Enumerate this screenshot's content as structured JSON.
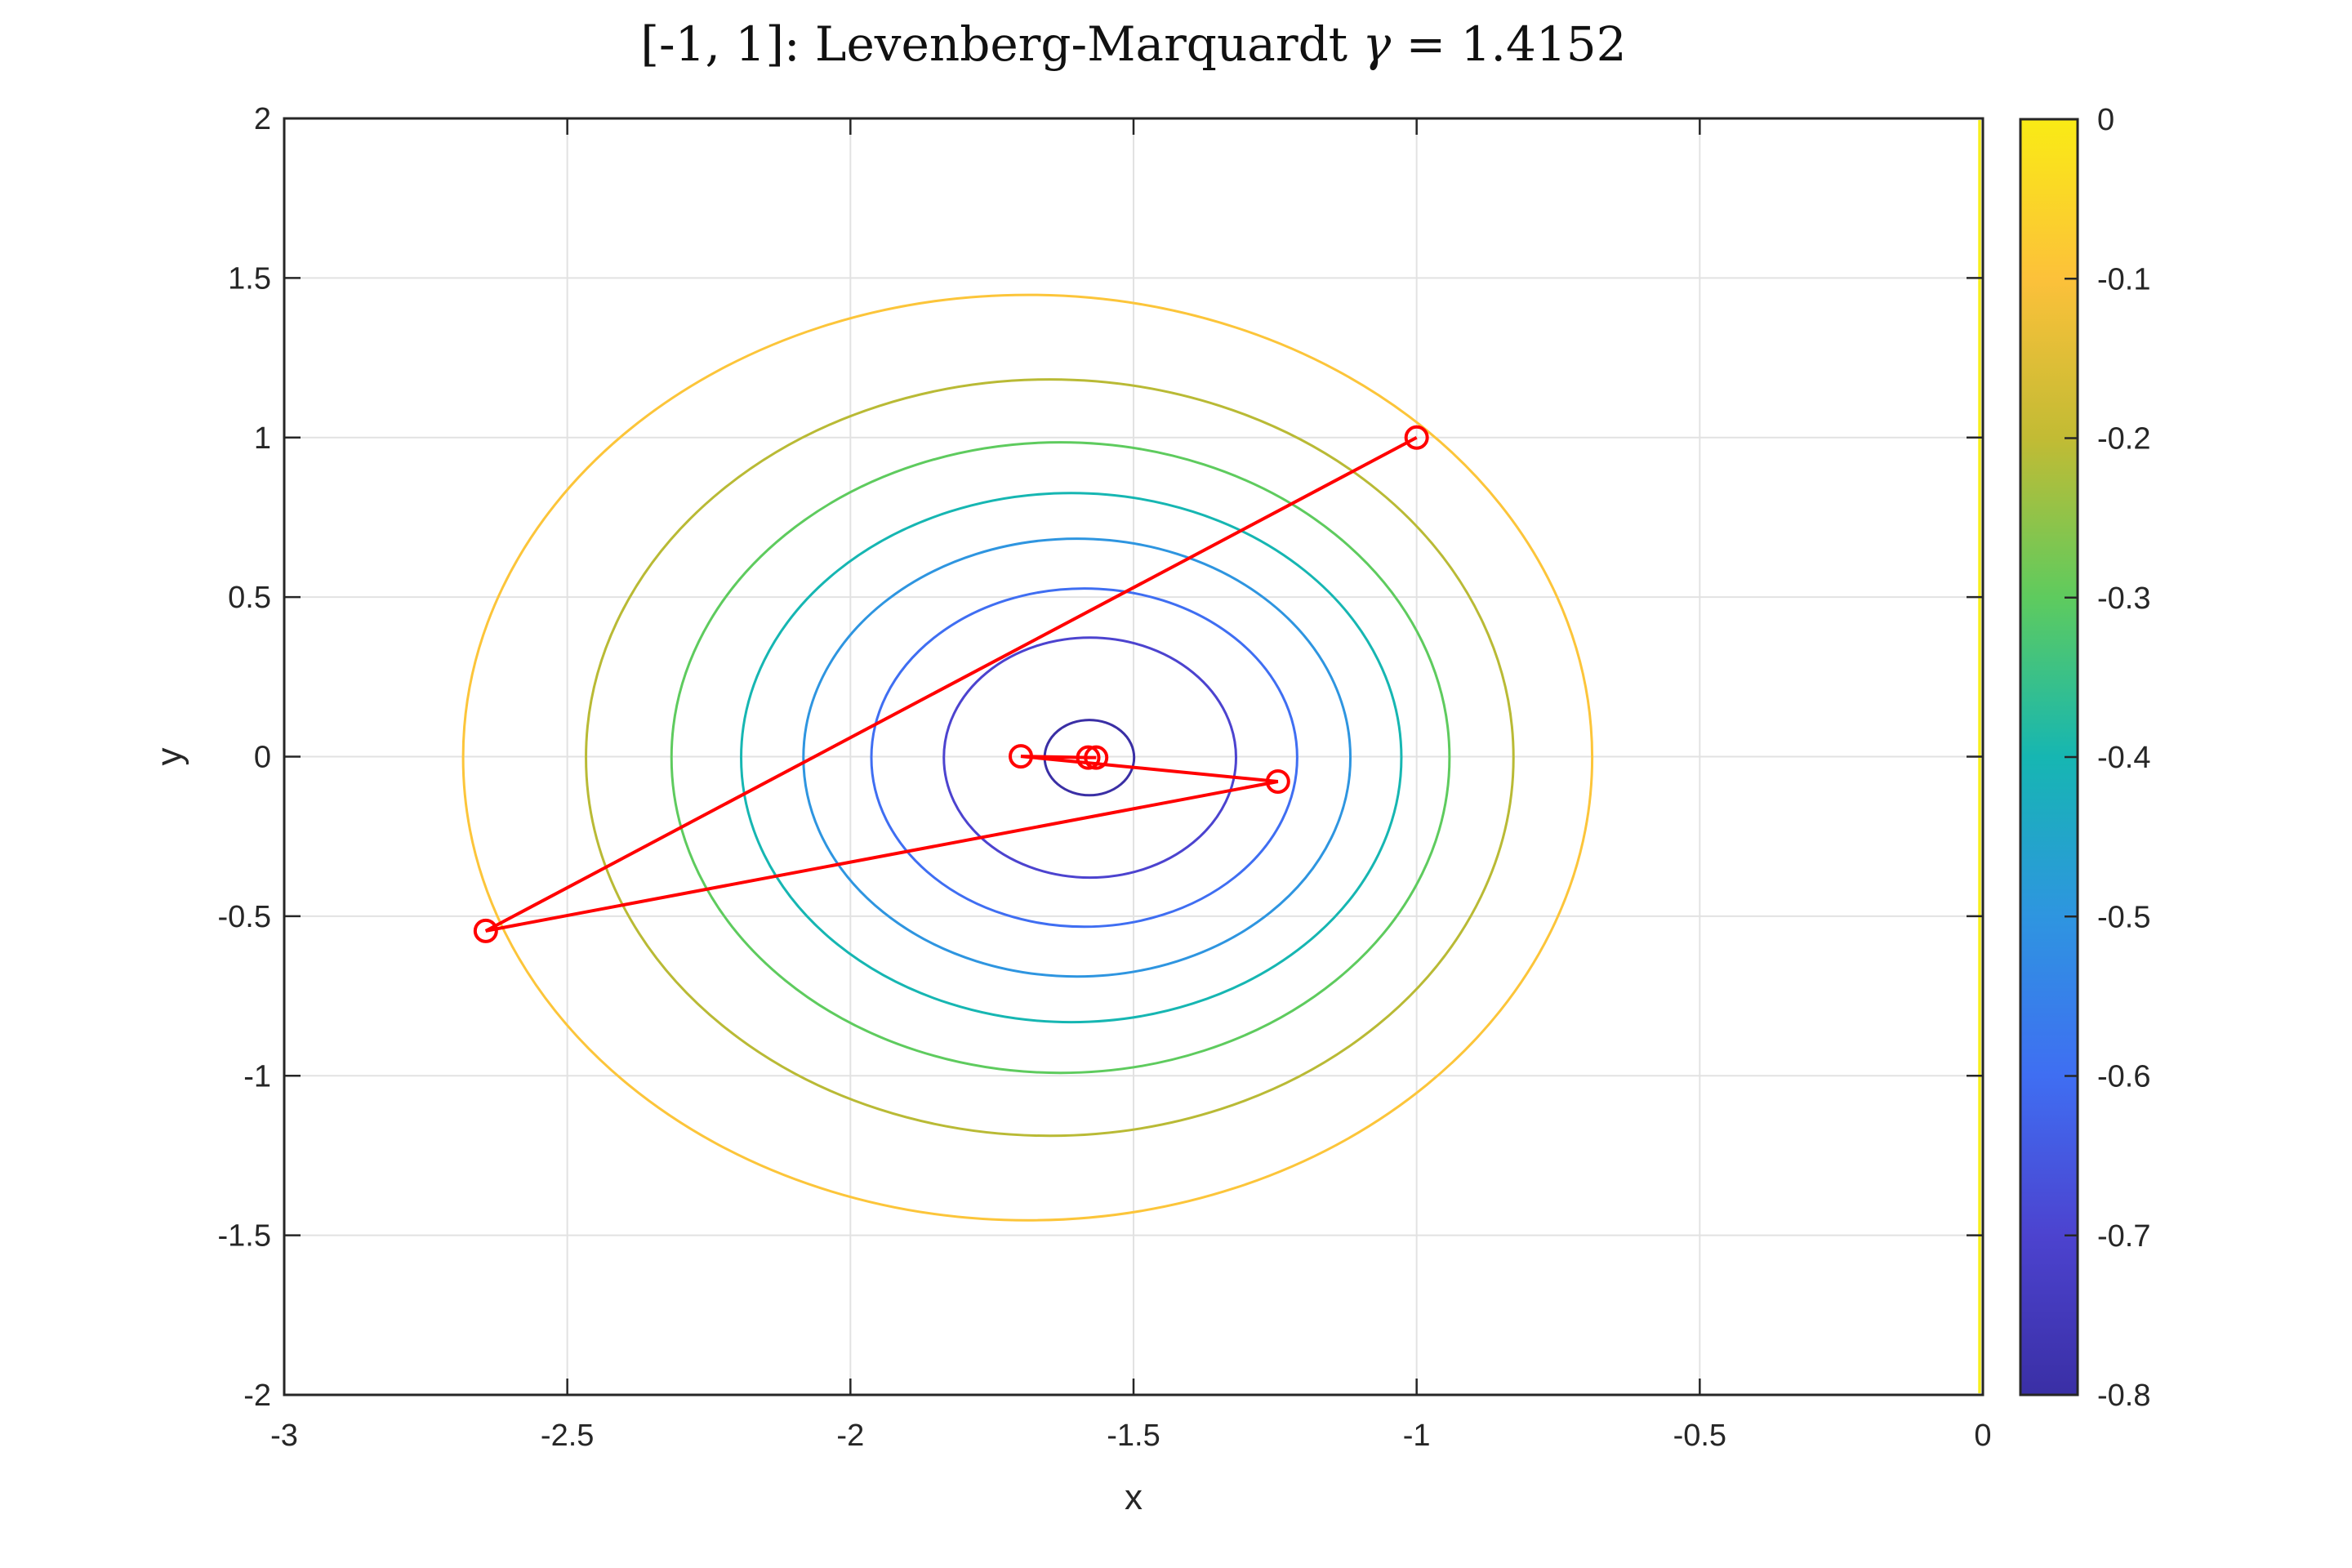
{
  "title_parts": {
    "prefix": "[-1, 1]: Levenberg-Marquardt ",
    "gamma": "γ",
    "suffix": " = 1.4152"
  },
  "chart_data": {
    "type": "contour",
    "title": "[-1, 1]: Levenberg-Marquardt γ = 1.4152",
    "xlabel": "x",
    "ylabel": "y",
    "xlim": [
      -3,
      0
    ],
    "ylim": [
      -2,
      2
    ],
    "grid": true,
    "legend": "none",
    "background": "#ffffff",
    "axis_color": "#262626",
    "grid_color": "#e2e2e2",
    "title_color": "#111111",
    "xticks": [
      {
        "v": -3,
        "label": "-3"
      },
      {
        "v": -2.5,
        "label": "-2.5"
      },
      {
        "v": -2,
        "label": "-2"
      },
      {
        "v": -1.5,
        "label": "-1.5"
      },
      {
        "v": -1,
        "label": "-1"
      },
      {
        "v": -0.5,
        "label": "-0.5"
      },
      {
        "v": 0,
        "label": "0"
      }
    ],
    "yticks": [
      {
        "v": -2,
        "label": "-2"
      },
      {
        "v": -1.5,
        "label": "-1.5"
      },
      {
        "v": -1,
        "label": "-1"
      },
      {
        "v": -0.5,
        "label": "-0.5"
      },
      {
        "v": 0,
        "label": "0"
      },
      {
        "v": 0.5,
        "label": "0.5"
      },
      {
        "v": 1,
        "label": "1"
      },
      {
        "v": 1.5,
        "label": "1.5"
      },
      {
        "v": 2,
        "label": "2"
      }
    ],
    "contours": [
      {
        "level": -0.8,
        "color": "#3a2fa5",
        "cx": -1.578,
        "cy": -0.003,
        "rx": 0.079,
        "ry": 0.118
      },
      {
        "level": -0.7,
        "color": "#4c43cf",
        "cx": -1.577,
        "cy": -0.003,
        "rx": 0.258,
        "ry": 0.376
      },
      {
        "level": -0.6,
        "color": "#3f6ef2",
        "cx": -1.587,
        "cy": -0.003,
        "rx": 0.376,
        "ry": 0.53
      },
      {
        "level": -0.5,
        "color": "#2e95e0",
        "cx": -1.6,
        "cy": -0.003,
        "rx": 0.483,
        "ry": 0.686
      },
      {
        "level": -0.4,
        "color": "#16b6b2",
        "cx": -1.61,
        "cy": -0.003,
        "rx": 0.583,
        "ry": 0.829
      },
      {
        "level": -0.3,
        "color": "#5ecb5e",
        "cx": -1.629,
        "cy": -0.003,
        "rx": 0.687,
        "ry": 0.988
      },
      {
        "level": -0.2,
        "color": "#b9ba35",
        "cx": -1.648,
        "cy": -0.003,
        "rx": 0.819,
        "ry": 1.185
      },
      {
        "level": -0.1,
        "color": "#fcc53a",
        "cx": -1.687,
        "cy": -0.003,
        "rx": 0.997,
        "ry": 1.45
      }
    ],
    "zero_contour": {
      "level": 0,
      "x": 0,
      "color": "#f7ef1e"
    },
    "path": {
      "name": "optimizer-iterates",
      "color": "#ff0000",
      "marker": "circle",
      "points": [
        [
          -1.0,
          1.0
        ],
        [
          -2.644,
          -0.546
        ],
        [
          -1.245,
          -0.078
        ],
        [
          -1.699,
          0.001
        ],
        [
          -1.58,
          -0.003
        ],
        [
          -1.566,
          -0.003
        ]
      ]
    },
    "colorbar": {
      "min": -0.8,
      "max": 0,
      "ticks": [
        {
          "v": 0,
          "label": "0"
        },
        {
          "v": -0.1,
          "label": "-0.1"
        },
        {
          "v": -0.2,
          "label": "-0.2"
        },
        {
          "v": -0.3,
          "label": "-0.3"
        },
        {
          "v": -0.4,
          "label": "-0.4"
        },
        {
          "v": -0.5,
          "label": "-0.5"
        },
        {
          "v": -0.6,
          "label": "-0.6"
        },
        {
          "v": -0.7,
          "label": "-0.7"
        },
        {
          "v": -0.8,
          "label": "-0.8"
        }
      ],
      "gradient": [
        {
          "t": 0.0,
          "color": "#f9eb15"
        },
        {
          "t": 0.125,
          "color": "#fcc13a"
        },
        {
          "t": 0.25,
          "color": "#c2bb34"
        },
        {
          "t": 0.375,
          "color": "#5ecb5e"
        },
        {
          "t": 0.5,
          "color": "#16b6b2"
        },
        {
          "t": 0.625,
          "color": "#2e95e0"
        },
        {
          "t": 0.75,
          "color": "#3f6ef2"
        },
        {
          "t": 0.875,
          "color": "#4c43cf"
        },
        {
          "t": 1.0,
          "color": "#3a2fa5"
        }
      ]
    }
  }
}
